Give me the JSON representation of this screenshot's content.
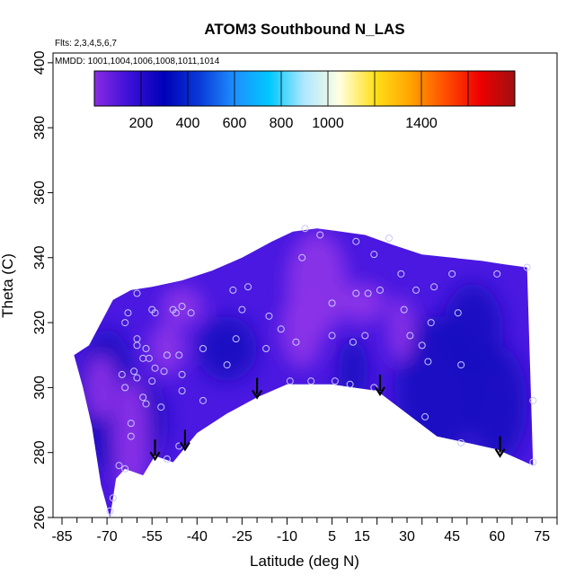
{
  "chart_data": {
    "type": "heatmap",
    "title": "ATOM3 Southbound N_LAS",
    "flights_label": "Flts: 2,3,4,5,6,7",
    "dates_label": "MMDD: 1001,1004,1006,1008,1011,1014",
    "xlabel": "Latitude (deg N)",
    "ylabel": "Theta (C)",
    "xlim": [
      -88,
      80
    ],
    "ylim": [
      260,
      403
    ],
    "x_ticks": [
      -85,
      -70,
      -55,
      -40,
      -25,
      -10,
      5,
      15,
      30,
      45,
      60,
      75
    ],
    "y_ticks": [
      260,
      280,
      300,
      320,
      340,
      360,
      380,
      400
    ],
    "colorbar": {
      "min": 0,
      "max": 1800,
      "tick_labels": [
        200,
        400,
        600,
        800,
        1000,
        1400
      ],
      "colors": [
        "#8a2be2",
        "#3b10d8",
        "#0000b8",
        "#0a3ad8",
        "#1e8fff",
        "#00c8ff",
        "#b0e8ff",
        "#ffffe0",
        "#ffe01a",
        "#ffa500",
        "#ff5000",
        "#ee0000",
        "#a01010"
      ]
    },
    "colors": {
      "field_high": "#8b32e8",
      "field_mid": "#4a18e0",
      "field_low": "#1808c0",
      "observation_marker": "#c8c8ff",
      "arrow": "#000000"
    },
    "data_extent": {
      "upper_boundary": [
        [
          -81,
          310
        ],
        [
          -76,
          313
        ],
        [
          -72,
          320
        ],
        [
          -68,
          327
        ],
        [
          -62,
          330
        ],
        [
          -55,
          331
        ],
        [
          -45,
          333
        ],
        [
          -35,
          336
        ],
        [
          -25,
          340
        ],
        [
          -15,
          345
        ],
        [
          -8,
          348
        ],
        [
          0,
          349
        ],
        [
          8,
          348
        ],
        [
          16,
          347
        ],
        [
          25,
          344
        ],
        [
          35,
          341
        ],
        [
          45,
          340
        ],
        [
          55,
          339
        ],
        [
          62,
          338
        ],
        [
          70,
          337
        ]
      ],
      "lower_boundary": [
        [
          -81,
          310
        ],
        [
          -78,
          300
        ],
        [
          -75,
          288
        ],
        [
          -72,
          270
        ],
        [
          -69,
          260
        ],
        [
          -67,
          272
        ],
        [
          -64,
          275
        ],
        [
          -58,
          273
        ],
        [
          -54,
          279
        ],
        [
          -48,
          277
        ],
        [
          -40,
          286
        ],
        [
          -30,
          292
        ],
        [
          -20,
          297
        ],
        [
          -10,
          301
        ],
        [
          5,
          301
        ],
        [
          20,
          299
        ],
        [
          30,
          292
        ],
        [
          40,
          285
        ],
        [
          50,
          283
        ],
        [
          60,
          281
        ],
        [
          72,
          276
        ]
      ]
    },
    "observations": [
      [
        -69,
        262
      ],
      [
        -68,
        266
      ],
      [
        -66,
        276
      ],
      [
        -64,
        275
      ],
      [
        -62,
        285
      ],
      [
        -62,
        289
      ],
      [
        -65,
        304
      ],
      [
        -64,
        300
      ],
      [
        -60,
        303
      ],
      [
        -58,
        297
      ],
      [
        -57,
        295
      ],
      [
        -61,
        305
      ],
      [
        -58,
        309
      ],
      [
        -56,
        309
      ],
      [
        -55,
        302
      ],
      [
        -54,
        306
      ],
      [
        -51,
        305
      ],
      [
        -50,
        310
      ],
      [
        -46,
        310
      ],
      [
        -45,
        304
      ],
      [
        -45,
        299
      ],
      [
        -52,
        294
      ],
      [
        -50,
        278
      ],
      [
        -46,
        282
      ],
      [
        -60,
        313
      ],
      [
        -60,
        315
      ],
      [
        -57,
        312
      ],
      [
        -64,
        320
      ],
      [
        -63,
        323
      ],
      [
        -60,
        329
      ],
      [
        -55,
        324
      ],
      [
        -54,
        323
      ],
      [
        -48,
        324
      ],
      [
        -47,
        323
      ],
      [
        -42,
        323
      ],
      [
        -45,
        325
      ],
      [
        -38,
        312
      ],
      [
        -38,
        296
      ],
      [
        -30,
        307
      ],
      [
        -27,
        315
      ],
      [
        -25,
        324
      ],
      [
        -28,
        330
      ],
      [
        -23,
        331
      ],
      [
        -16,
        322
      ],
      [
        -17,
        312
      ],
      [
        -12,
        318
      ],
      [
        -9,
        302
      ],
      [
        -7,
        314
      ],
      [
        -2,
        302
      ],
      [
        -5,
        340
      ],
      [
        -4,
        349
      ],
      [
        1,
        347
      ],
      [
        5,
        326
      ],
      [
        5,
        316
      ],
      [
        6,
        302
      ],
      [
        11,
        301
      ],
      [
        12,
        314
      ],
      [
        13,
        329
      ],
      [
        13,
        345
      ],
      [
        16,
        316
      ],
      [
        17,
        329
      ],
      [
        19,
        300
      ],
      [
        21,
        330
      ],
      [
        19,
        341
      ],
      [
        24,
        346
      ],
      [
        28,
        335
      ],
      [
        29,
        324
      ],
      [
        31,
        316
      ],
      [
        33,
        330
      ],
      [
        35,
        313
      ],
      [
        36,
        291
      ],
      [
        37,
        308
      ],
      [
        38,
        320
      ],
      [
        39,
        331
      ],
      [
        45,
        335
      ],
      [
        47,
        323
      ],
      [
        48,
        307
      ],
      [
        48,
        283
      ],
      [
        60,
        335
      ],
      [
        70,
        337
      ],
      [
        72,
        296
      ],
      [
        72,
        277
      ]
    ],
    "arrows": [
      [
        -54,
        284
      ],
      [
        -44,
        287
      ],
      [
        -20,
        303
      ],
      [
        21,
        304
      ],
      [
        61,
        285
      ]
    ]
  }
}
